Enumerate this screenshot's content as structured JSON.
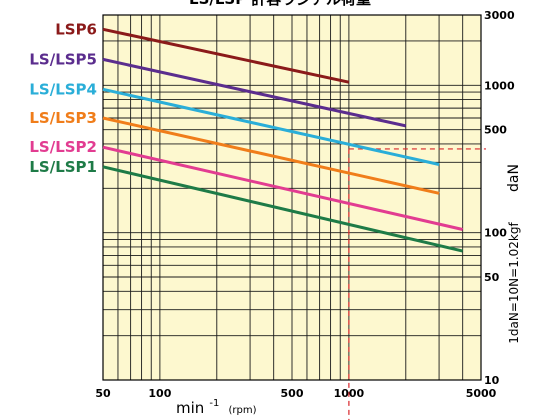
{
  "chart_data": {
    "type": "line",
    "title": "LS/LSP 許容ラジアル荷重",
    "xlabel": "min",
    "xlabel_exponent": "-1",
    "xlabel_unit": "(rpm)",
    "ylabel": "daN",
    "ylabel_note": "1daN=10N=1.02kgf",
    "x_scale": "log",
    "y_scale": "log",
    "xlim": [
      50,
      5000
    ],
    "ylim": [
      10,
      3000
    ],
    "grid": true,
    "background": "#fdf8cf",
    "x_ticks": [
      {
        "value": 50,
        "label": "50"
      },
      {
        "value": 100,
        "label": "100"
      },
      {
        "value": 500,
        "label": "500"
      },
      {
        "value": 1000,
        "label": "1000"
      },
      {
        "value": 5000,
        "label": "5000"
      }
    ],
    "y_ticks": [
      {
        "value": 3000,
        "label": "3000"
      },
      {
        "value": 1000,
        "label": "1000"
      },
      {
        "value": 500,
        "label": "500"
      },
      {
        "value": 100,
        "label": "100"
      },
      {
        "value": 50,
        "label": "50"
      },
      {
        "value": 10,
        "label": "10"
      }
    ],
    "series": [
      {
        "name": "LSP6",
        "color": "#8b1a1a",
        "x": [
          50,
          1000
        ],
        "y": [
          2400,
          1050
        ]
      },
      {
        "name": "LS/LSP5",
        "color": "#5b2d8e",
        "x": [
          50,
          2000
        ],
        "y": [
          1500,
          530
        ]
      },
      {
        "name": "LS/LSP4",
        "color": "#2aaed8",
        "x": [
          50,
          3000
        ],
        "y": [
          940,
          290
        ]
      },
      {
        "name": "LS/LSP3",
        "color": "#f07d1a",
        "x": [
          50,
          3000
        ],
        "y": [
          600,
          185
        ]
      },
      {
        "name": "LS/LSP2",
        "color": "#e23c91",
        "x": [
          50,
          4000
        ],
        "y": [
          380,
          105
        ]
      },
      {
        "name": "LS/LSP1",
        "color": "#1e7b47",
        "x": [
          50,
          4000
        ],
        "y": [
          280,
          75
        ]
      }
    ],
    "reference": {
      "color": "#d9262a",
      "x": 1000,
      "y": 370
    }
  }
}
